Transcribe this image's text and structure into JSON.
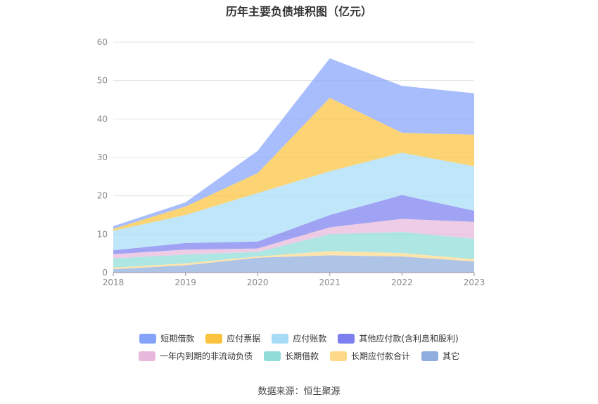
{
  "title": "历年主要负债堆积图（亿元）",
  "source_label": "数据来源：恒生聚源",
  "chart_data": {
    "type": "area",
    "stacked": true,
    "x": [
      "2018",
      "2019",
      "2020",
      "2021",
      "2022",
      "2023"
    ],
    "ylim": [
      0,
      60
    ],
    "yticks": [
      0,
      10,
      20,
      30,
      40,
      50,
      60
    ],
    "grid": true,
    "legend_position": "bottom",
    "series": [
      {
        "name": "其它",
        "color": "#8fadde",
        "values": [
          0.9,
          1.9,
          3.9,
          4.5,
          4.2,
          2.9
        ]
      },
      {
        "name": "长期应付款合计",
        "color": "#ffd98a",
        "values": [
          0.4,
          0.5,
          0.3,
          1.1,
          0.9,
          0.6
        ]
      },
      {
        "name": "长期借款",
        "color": "#8fdcd8",
        "values": [
          2.4,
          2.3,
          1.2,
          4.4,
          5.5,
          5.3
        ]
      },
      {
        "name": "一年内到期的非流动负债",
        "color": "#e8b8dc",
        "values": [
          1.1,
          1.3,
          0.9,
          1.8,
          3.4,
          4.4
        ]
      },
      {
        "name": "其他应付款(含利息和股利)",
        "color": "#7b7ff0",
        "values": [
          1.0,
          1.7,
          1.8,
          3.2,
          6.2,
          2.9
        ]
      },
      {
        "name": "应付账款",
        "color": "#a6dcf7",
        "values": [
          5.1,
          7.3,
          12.6,
          11.4,
          11.0,
          11.6
        ]
      },
      {
        "name": "应付票据",
        "color": "#fbc33d",
        "values": [
          0.5,
          2.2,
          5.2,
          19.1,
          5.2,
          8.2
        ]
      },
      {
        "name": "短期借款",
        "color": "#86a3fb",
        "values": [
          0.7,
          1.1,
          5.8,
          10.3,
          12.2,
          10.8
        ]
      }
    ]
  },
  "legend_rows": [
    [
      "短期借款",
      "应付票据",
      "应付账款",
      "其他应付款(含利息和股利)"
    ],
    [
      "一年内到期的非流动负债",
      "长期借款",
      "长期应付款合计",
      "其它"
    ]
  ]
}
